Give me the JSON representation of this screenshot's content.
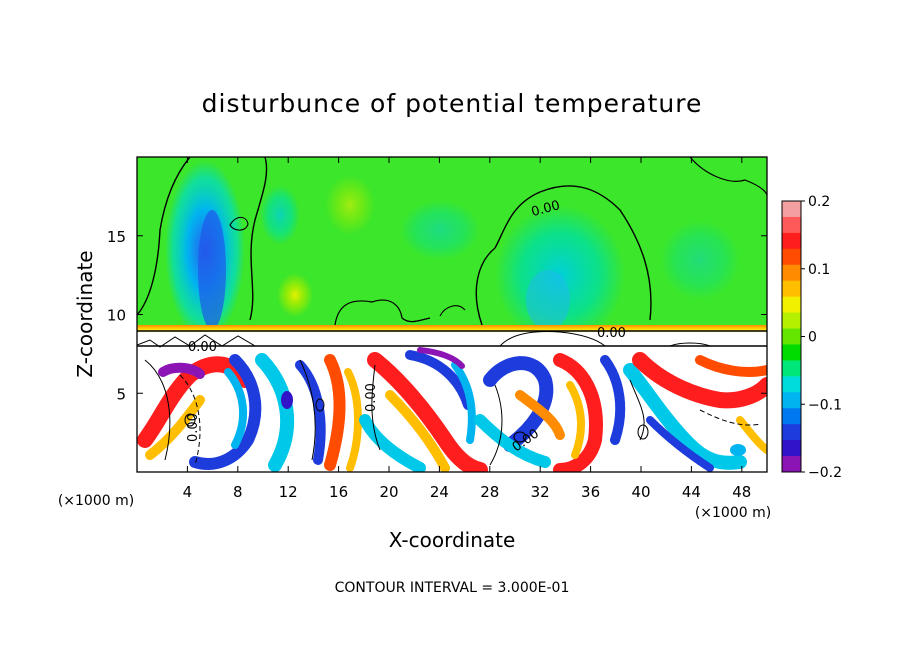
{
  "chart_data": {
    "type": "heatmap",
    "title": "disturbunce of potential temperature",
    "xlabel": "X-coordinate",
    "ylabel": "Z-coordinate",
    "x_unit": "(×1000 m)",
    "z_unit": "(×1000 m)",
    "xlim": [
      0,
      50
    ],
    "ylim": [
      0,
      20
    ],
    "x_ticks": [
      4,
      8,
      12,
      16,
      20,
      24,
      28,
      32,
      36,
      40,
      44,
      48
    ],
    "y_ticks": [
      5,
      10,
      15
    ],
    "colorbar": {
      "min": -0.2,
      "max": 0.2,
      "tick_labels": [
        "0.2",
        "0.1",
        "0",
        "−0.1",
        "−0.2"
      ],
      "tick_values": [
        0.2,
        0.1,
        0,
        -0.1,
        -0.2
      ],
      "colors": [
        "#f4a0a0",
        "#ff5a5a",
        "#ff1e1e",
        "#ff4c00",
        "#ff8c00",
        "#ffbe00",
        "#f0f000",
        "#b4f000",
        "#64e600",
        "#00dc00",
        "#00e678",
        "#00dcdc",
        "#00b4f0",
        "#0078f0",
        "#1e3cdc",
        "#3214c8",
        "#8c14b4"
      ]
    },
    "contour_interval_text": "CONTOUR INTERVAL = 3.000E-01",
    "contour_labels": [
      "0.00",
      "0.00",
      "0.00",
      "0.00",
      "0.00",
      "0.00"
    ],
    "band_top": 9.0,
    "band_bottom": 8.2
  }
}
